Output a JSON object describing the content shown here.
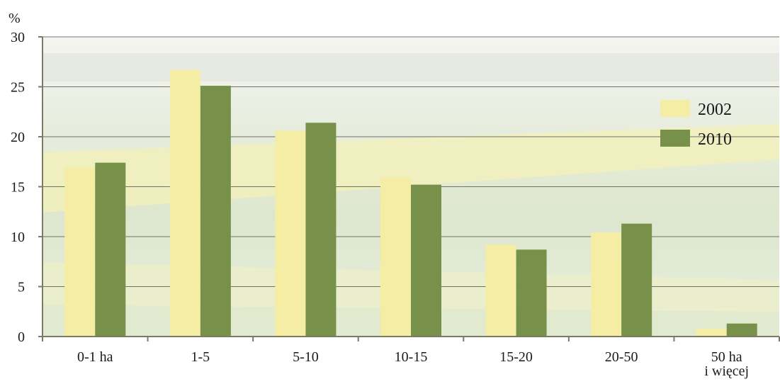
{
  "chart_data": {
    "type": "bar",
    "title": "",
    "xlabel": "",
    "ylabel": "%",
    "ylim": [
      0,
      30
    ],
    "yticks": [
      "0",
      "5",
      "10",
      "15",
      "20",
      "25",
      "30"
    ],
    "grid": true,
    "legend_position": "right",
    "categories": [
      "0-1 ha",
      "1-5",
      "5-10",
      "10-15",
      "15-20",
      "20-50",
      [
        "50 ha",
        "i więcej"
      ]
    ],
    "series": [
      {
        "name": "2002",
        "values": [
          16.9,
          26.7,
          20.6,
          15.9,
          9.2,
          10.4,
          0.8
        ]
      },
      {
        "name": "2010",
        "values": [
          17.4,
          25.1,
          21.4,
          15.2,
          8.7,
          11.3,
          1.3
        ]
      }
    ]
  },
  "colors": {
    "series_2002": "#f6eda5",
    "series_2010": "#77904a",
    "axis": "#7a7a66",
    "grid": "#5c5c55"
  }
}
